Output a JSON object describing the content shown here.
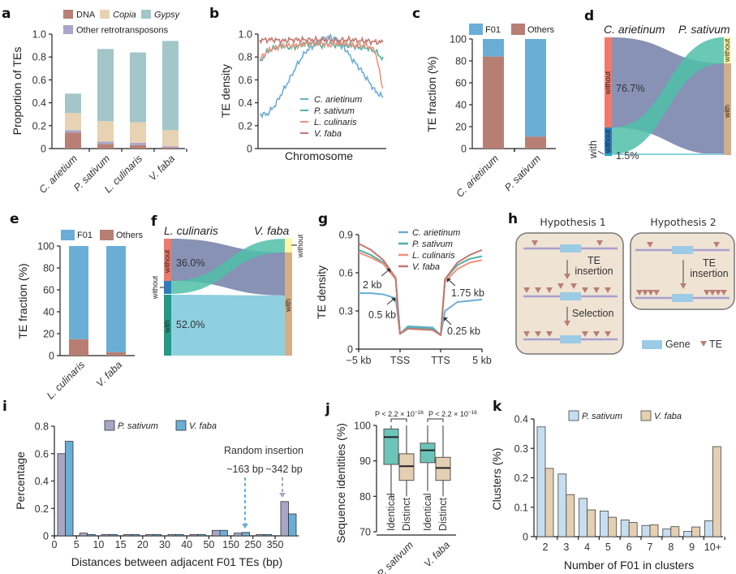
{
  "panels": {
    "a": "a",
    "b": "b",
    "c": "c",
    "d": "d",
    "e": "e",
    "f": "f",
    "g": "g",
    "h": "h",
    "i": "i",
    "j": "j",
    "k": "k"
  },
  "colors": {
    "dna": "#b97f74",
    "copia": "#e8d2b4",
    "gypsy": "#a3c6c8",
    "other": "#a9a5cc",
    "f01": "#6aaed6",
    "others": "#b77f74",
    "c_arietinum": "#6aaed6",
    "p_sativum": "#4fb3a6",
    "l_culinaris": "#f0927a",
    "v_faba": "#c27a72",
    "k_psat": "#c7def0",
    "k_vfaba": "#e4cfb2",
    "i_psat": "#a9a6c5",
    "i_vfaba": "#6aaed6",
    "j_identical": "#6cc5b8",
    "j_distinct": "#e4cfb2"
  },
  "chart_data": [
    {
      "id": "a",
      "type": "bar",
      "stacked": true,
      "ylabel": "Proportion of TEs",
      "ylim": [
        0,
        1.0
      ],
      "yticks": [
        "0",
        "0.2",
        "0.4",
        "0.6",
        "0.8",
        "1.0"
      ],
      "categories": [
        "C. arietium",
        "P. sativum",
        "L. culinaris",
        "V. faba"
      ],
      "legend": [
        "DNA",
        "Copia",
        "Gypsy",
        "Other retrotransposons"
      ],
      "series": [
        {
          "name": "DNA",
          "values": [
            0.14,
            0.04,
            0.03,
            0.01
          ]
        },
        {
          "name": "Other retrotransposons",
          "values": [
            0.02,
            0.02,
            0.02,
            0.01
          ]
        },
        {
          "name": "Copia",
          "values": [
            0.15,
            0.18,
            0.18,
            0.14
          ]
        },
        {
          "name": "Gypsy",
          "values": [
            0.17,
            0.63,
            0.61,
            0.78
          ]
        }
      ]
    },
    {
      "id": "b",
      "type": "line",
      "xlabel": "Chromosome",
      "ylabel": "TE density",
      "ylim": [
        0,
        1.0
      ],
      "yticks": [
        "0",
        "0.2",
        "0.4",
        "0.6",
        "0.8",
        "1.0"
      ],
      "legend": [
        "C. arietinum",
        "P. sativum",
        "L. culinaris",
        "V. faba"
      ],
      "series": [
        {
          "name": "C. arietinum",
          "values": [
            0.3,
            0.3,
            0.38,
            0.5,
            0.62,
            0.75,
            0.85,
            0.9,
            0.95,
            0.98,
            0.95,
            0.88,
            0.78,
            0.7,
            0.6,
            0.5,
            0.45
          ]
        },
        {
          "name": "P. sativum",
          "values": [
            0.75,
            0.85,
            0.88,
            0.9,
            0.88,
            0.9,
            0.92,
            0.92,
            0.9,
            0.92,
            0.9,
            0.9,
            0.9,
            0.88,
            0.88,
            0.85,
            0.78
          ]
        },
        {
          "name": "L. culinaris",
          "values": [
            0.78,
            0.85,
            0.88,
            0.9,
            0.9,
            0.9,
            0.92,
            0.92,
            0.92,
            0.9,
            0.92,
            0.92,
            0.9,
            0.9,
            0.9,
            0.85,
            0.52
          ]
        },
        {
          "name": "V. faba",
          "values": [
            0.95,
            0.95,
            0.95,
            0.94,
            0.95,
            0.95,
            0.95,
            0.95,
            0.95,
            0.95,
            0.94,
            0.95,
            0.95,
            0.94,
            0.94,
            0.93,
            0.93
          ]
        }
      ]
    },
    {
      "id": "c",
      "type": "bar",
      "stacked": true,
      "ylabel": "TE fraction (%)",
      "ylim": [
        0,
        100
      ],
      "yticks": [
        "0",
        "20",
        "40",
        "60",
        "80",
        "100"
      ],
      "categories": [
        "C. arietinum",
        "P. sativum"
      ],
      "legend": [
        "F01",
        "Others"
      ],
      "series": [
        {
          "name": "Others",
          "values": [
            84,
            11
          ]
        },
        {
          "name": "F01",
          "values": [
            16,
            89
          ]
        }
      ]
    },
    {
      "id": "d",
      "type": "sankey",
      "left_title": "C. arietinum",
      "right_title": "P. sativum",
      "left_nodes": [
        "without",
        "without",
        "with"
      ],
      "right_nodes": [
        "without",
        "with"
      ],
      "labels": [
        "76.7%",
        "1.5%"
      ],
      "with_label": "with"
    },
    {
      "id": "e",
      "type": "bar",
      "stacked": true,
      "ylabel": "TE fraction (%)",
      "ylim": [
        0,
        100
      ],
      "yticks": [
        "0",
        "20",
        "40",
        "60",
        "80",
        "100"
      ],
      "categories": [
        "L. culinaris",
        "V. faba"
      ],
      "legend": [
        "F01",
        "Others"
      ],
      "series": [
        {
          "name": "Others",
          "values": [
            15,
            3
          ]
        },
        {
          "name": "F01",
          "values": [
            85,
            97
          ]
        }
      ]
    },
    {
      "id": "f",
      "type": "sankey",
      "left_title": "L. culinaris",
      "right_title": "V. faba",
      "left_nodes": [
        "without",
        "without",
        "with"
      ],
      "right_nodes": [
        "without",
        "with"
      ],
      "labels": [
        "36.0%",
        "52.0%"
      ]
    },
    {
      "id": "g",
      "type": "line",
      "ylabel": "TE density",
      "ylim": [
        0,
        0.9
      ],
      "yticks": [
        "0",
        "0.3",
        "0.6",
        "0.9"
      ],
      "xticks": [
        "−5 kb",
        "TSS",
        "TTS",
        "5 kb"
      ],
      "legend": [
        "C. arietinum",
        "P. sativum",
        "L. culinaris",
        "V. faba"
      ],
      "annotations": [
        "2 kb",
        "0.5 kb",
        "1.75 kb",
        "0.25 kb"
      ],
      "series": [
        {
          "name": "C. arietinum",
          "values": [
            0.44,
            0.44,
            0.43,
            0.4,
            0.12,
            0.18,
            0.17,
            0.11,
            0.3,
            0.37,
            0.38,
            0.39
          ]
        },
        {
          "name": "P. sativum",
          "values": [
            0.78,
            0.74,
            0.68,
            0.55,
            0.12,
            0.17,
            0.16,
            0.11,
            0.55,
            0.66,
            0.71,
            0.73
          ]
        },
        {
          "name": "L. culinaris",
          "values": [
            0.76,
            0.72,
            0.67,
            0.55,
            0.12,
            0.16,
            0.15,
            0.11,
            0.53,
            0.63,
            0.68,
            0.7
          ]
        },
        {
          "name": "V. faba",
          "values": [
            0.83,
            0.78,
            0.7,
            0.56,
            0.12,
            0.16,
            0.15,
            0.11,
            0.55,
            0.68,
            0.74,
            0.78
          ]
        }
      ]
    },
    {
      "id": "i",
      "type": "bar",
      "ylabel": "Percentage",
      "xlabel": "Distances between adjacent F01 TEs (bp)",
      "ylim": [
        0,
        0.8
      ],
      "yticks": [
        "0",
        "0.2",
        "0.4",
        "0.6",
        "0.8"
      ],
      "xticks": [
        "0",
        "5",
        "10",
        "15",
        "20",
        "30",
        "40",
        "50",
        "150",
        "250",
        "350"
      ],
      "legend": [
        "P. sativum",
        "V. faba"
      ],
      "annotation_title": "Random insertion",
      "annotations": [
        "~163 bp",
        "~342 bp"
      ],
      "series": [
        {
          "name": "P. sativum",
          "values": [
            0.6,
            0.02,
            0.01,
            0.01,
            0.01,
            0.01,
            0.01,
            0.04,
            0.02,
            0.01,
            0.25
          ]
        },
        {
          "name": "V. faba",
          "values": [
            0.69,
            0.01,
            0.01,
            0.01,
            0.01,
            0.01,
            0.01,
            0.04,
            0.025,
            0.01,
            0.16
          ]
        }
      ]
    },
    {
      "id": "j",
      "type": "box",
      "ylabel": "Sequence identities (%)",
      "ylim": [
        70,
        100
      ],
      "yticks": [
        "70",
        "80",
        "90",
        "100"
      ],
      "categories": [
        "P. sativum",
        "V. faba"
      ],
      "box_labels": [
        "Identical",
        "Distinct",
        "Identical",
        "Distinct"
      ],
      "p_label": "P < 2.2 × 10",
      "p_exp": "−16",
      "boxes": [
        {
          "name": "Identical",
          "min": 80,
          "q1": 89,
          "median": 96.7,
          "q3": 99,
          "max": 100
        },
        {
          "name": "Distinct",
          "min": 80,
          "q1": 84.5,
          "median": 88.5,
          "q3": 92,
          "max": 100
        },
        {
          "name": "Identical",
          "min": 81.5,
          "q1": 89.5,
          "median": 93,
          "q3": 95,
          "max": 100
        },
        {
          "name": "Distinct",
          "min": 80,
          "q1": 84.5,
          "median": 88,
          "q3": 91,
          "max": 100
        }
      ]
    },
    {
      "id": "k",
      "type": "bar",
      "ylabel": "Clusters (%)",
      "xlabel": "Number of F01 in clusters",
      "ylim": [
        0,
        0.4
      ],
      "yticks": [
        "0",
        "0.1",
        "0.2",
        "0.3",
        "0.4"
      ],
      "categories": [
        "2",
        "3",
        "4",
        "5",
        "6",
        "7",
        "8",
        "9",
        "10+"
      ],
      "legend": [
        "P. sativum",
        "V. faba"
      ],
      "series": [
        {
          "name": "P. sativum",
          "values": [
            0.373,
            0.213,
            0.13,
            0.087,
            0.057,
            0.038,
            0.026,
            0.018,
            0.054
          ]
        },
        {
          "name": "V. faba",
          "values": [
            0.232,
            0.143,
            0.091,
            0.066,
            0.048,
            0.04,
            0.034,
            0.033,
            0.306
          ]
        }
      ]
    }
  ],
  "hypotheses": {
    "h1_title": "Hypothesis 1",
    "h2_title": "Hypothesis 2",
    "te_insertion_1": "TE",
    "te_insertion_2": "insertion",
    "selection": "Selection",
    "legend_gene": "Gene",
    "legend_te": "TE"
  }
}
